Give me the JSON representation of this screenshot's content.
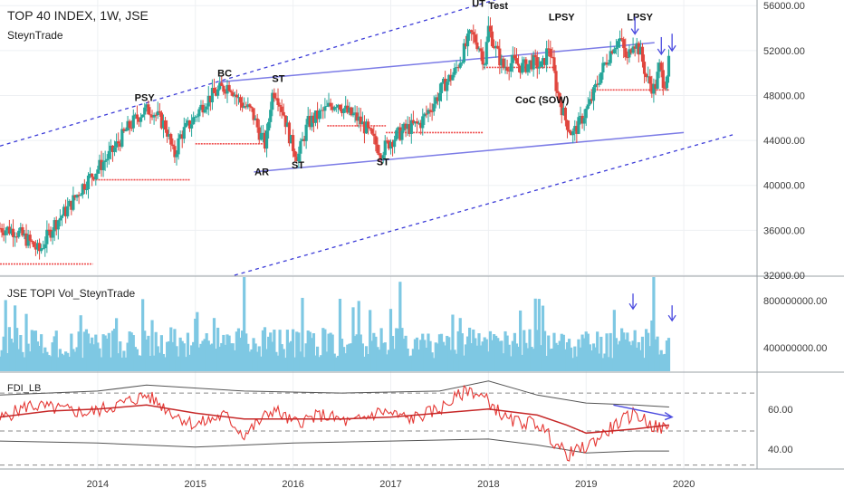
{
  "header": {
    "title": "TOP 40 INDEX, 1W, JSE",
    "author": "SteynTrade"
  },
  "volume_pane": {
    "title": "JSE TOPI Vol_SteynTrade"
  },
  "fdi_pane": {
    "title": "FDI_LB"
  },
  "chart_data": [
    {
      "type": "candlestick",
      "title": "TOP 40 INDEX, 1W, JSE",
      "subtitle": "SteynTrade",
      "timeframe": "1W",
      "exchange": "JSE",
      "x_ticks": [
        "2014",
        "2015",
        "2016",
        "2017",
        "2018",
        "2019",
        "2020"
      ],
      "x_tick_dates": [
        2014.0,
        2015.0,
        2016.0,
        2017.0,
        2018.0,
        2019.0,
        2020.0
      ],
      "x_range": [
        2013.0,
        2020.75
      ],
      "y_ticks": [
        "32000.00",
        "36000.00",
        "40000.00",
        "44000.00",
        "48000.00",
        "52000.00",
        "56000.00"
      ],
      "ylim": [
        32000,
        56500
      ],
      "close_series": [
        [
          2013.0,
          36200
        ],
        [
          2013.15,
          36000
        ],
        [
          2013.3,
          35000
        ],
        [
          2013.4,
          34100
        ],
        [
          2013.55,
          36500
        ],
        [
          2013.7,
          38000
        ],
        [
          2013.85,
          40000
        ],
        [
          2014.0,
          41500
        ],
        [
          2014.15,
          43000
        ],
        [
          2014.3,
          45000
        ],
        [
          2014.45,
          46500
        ],
        [
          2014.55,
          46800
        ],
        [
          2014.62,
          46000
        ],
        [
          2014.7,
          45200
        ],
        [
          2014.78,
          42500
        ],
        [
          2014.85,
          44500
        ],
        [
          2014.95,
          45500
        ],
        [
          2015.1,
          47500
        ],
        [
          2015.25,
          48500
        ],
        [
          2015.35,
          49000
        ],
        [
          2015.45,
          47500
        ],
        [
          2015.58,
          46500
        ],
        [
          2015.65,
          44800
        ],
        [
          2015.72,
          43500
        ],
        [
          2015.78,
          48000
        ],
        [
          2015.82,
          48500
        ],
        [
          2015.9,
          46500
        ],
        [
          2015.98,
          43800
        ],
        [
          2016.05,
          42500
        ],
        [
          2016.15,
          45500
        ],
        [
          2016.3,
          46500
        ],
        [
          2016.45,
          47500
        ],
        [
          2016.55,
          46500
        ],
        [
          2016.65,
          46000
        ],
        [
          2016.75,
          45000
        ],
        [
          2016.82,
          44000
        ],
        [
          2016.9,
          43000
        ],
        [
          2017.0,
          44000
        ],
        [
          2017.15,
          45000
        ],
        [
          2017.3,
          45500
        ],
        [
          2017.45,
          47500
        ],
        [
          2017.55,
          49000
        ],
        [
          2017.65,
          50000
        ],
        [
          2017.75,
          52000
        ],
        [
          2017.82,
          53500
        ],
        [
          2017.9,
          52500
        ],
        [
          2017.96,
          51000
        ],
        [
          2018.0,
          54000
        ],
        [
          2018.08,
          52000
        ],
        [
          2018.15,
          50500
        ],
        [
          2018.25,
          51000
        ],
        [
          2018.35,
          50500
        ],
        [
          2018.45,
          51000
        ],
        [
          2018.55,
          50500
        ],
        [
          2018.62,
          52500
        ],
        [
          2018.7,
          48500
        ],
        [
          2018.78,
          46000
        ],
        [
          2018.86,
          44500
        ],
        [
          2018.95,
          45800
        ],
        [
          2019.05,
          47500
        ],
        [
          2019.15,
          50000
        ],
        [
          2019.28,
          52500
        ],
        [
          2019.35,
          53000
        ],
        [
          2019.42,
          51000
        ],
        [
          2019.48,
          53000
        ],
        [
          2019.55,
          52000
        ],
        [
          2019.62,
          49500
        ],
        [
          2019.7,
          48500
        ],
        [
          2019.75,
          50500
        ],
        [
          2019.8,
          49000
        ],
        [
          2019.85,
          51000
        ]
      ],
      "annotations": [
        {
          "text": "PSY",
          "x": 2014.48,
          "y": 47500
        },
        {
          "text": "BC",
          "x": 2015.3,
          "y": 49700
        },
        {
          "text": "ST",
          "x": 2015.85,
          "y": 49200
        },
        {
          "text": "AR",
          "x": 2015.68,
          "y": 40900
        },
        {
          "text": "ST",
          "x": 2016.05,
          "y": 41500
        },
        {
          "text": "ST",
          "x": 2016.92,
          "y": 41800
        },
        {
          "text": "UT",
          "x": 2017.9,
          "y": 55900
        },
        {
          "text": "Test",
          "x": 2018.1,
          "y": 55700
        },
        {
          "text": "LPSY",
          "x": 2018.75,
          "y": 54700
        },
        {
          "text": "CoC (SOW)",
          "x": 2018.55,
          "y": 47300
        },
        {
          "text": "LPSY",
          "x": 2019.55,
          "y": 54700
        }
      ],
      "channel_dashed_upper": [
        [
          2013.0,
          43500
        ],
        [
          2018.45,
          57500
        ]
      ],
      "channel_dashed_lower": [
        [
          2015.4,
          32000
        ],
        [
          2020.5,
          44500
        ]
      ],
      "trend_lines": [
        [
          [
            2015.25,
            49200
          ],
          [
            2019.7,
            52700
          ]
        ],
        [
          [
            2015.6,
            41200
          ],
          [
            2020.0,
            44700
          ]
        ]
      ],
      "resistance_levels": [
        [
          [
            2013.0,
            2013.95,
            33000
          ]
        ],
        [
          [
            2013.95,
            2014.95,
            40500
          ]
        ],
        [
          [
            2015.0,
            2015.7,
            43700
          ]
        ],
        [
          [
            2016.35,
            2016.95,
            45300
          ]
        ],
        [
          [
            2016.95,
            2017.95,
            44700
          ]
        ],
        [
          [
            2017.95,
            2018.7,
            50500
          ]
        ],
        [
          [
            2019.05,
            2019.85,
            48500
          ]
        ]
      ],
      "arrows": [
        {
          "x": 2019.5,
          "y": 55000
        },
        {
          "x": 2019.77,
          "y": 53200
        },
        {
          "x": 2019.88,
          "y": 53500
        }
      ],
      "colors": {
        "up": "#26a69a",
        "down": "#e0463e",
        "channel": "#3c3cd8",
        "support_resistance": "#ef4f4f"
      }
    },
    {
      "type": "bar",
      "title": "JSE TOPI Vol_SteynTrade",
      "y_ticks": [
        "400000000.00",
        "800000000.00"
      ],
      "ylim": [
        200000000,
        1000000000
      ],
      "x_range": [
        2013.0,
        2020.75
      ],
      "base_value": 480000000,
      "peaks": [
        {
          "x": 2015.5,
          "value": 1000000000
        },
        {
          "x": 2017.1,
          "value": 960000000
        },
        {
          "x": 2019.7,
          "value": 1000000000
        },
        {
          "x": 2019.88,
          "value": 650000000
        }
      ],
      "arrows": [
        {
          "x": 2019.48,
          "value": 860000000
        },
        {
          "x": 2019.88,
          "value": 760000000
        }
      ],
      "color": "#7ec8e3"
    },
    {
      "type": "line",
      "title": "FDI_LB",
      "y_ticks": [
        "40.00",
        "60.00"
      ],
      "ylim": [
        30,
        78
      ],
      "x_range": [
        2013.0,
        2020.75
      ],
      "reference_levels": [
        32,
        49,
        68
      ],
      "series": [
        {
          "color": "#e53935",
          "values": [
            [
              2013.0,
              55
            ],
            [
              2013.3,
              62
            ],
            [
              2013.6,
              60
            ],
            [
              2013.9,
              58
            ],
            [
              2014.2,
              62
            ],
            [
              2014.5,
              67
            ],
            [
              2014.8,
              57
            ],
            [
              2015.0,
              52
            ],
            [
              2015.3,
              57
            ],
            [
              2015.5,
              47
            ],
            [
              2015.8,
              60
            ],
            [
              2016.0,
              53
            ],
            [
              2016.3,
              57
            ],
            [
              2016.6,
              53
            ],
            [
              2016.9,
              59
            ],
            [
              2017.2,
              55
            ],
            [
              2017.5,
              60
            ],
            [
              2017.8,
              70
            ],
            [
              2018.0,
              64
            ],
            [
              2018.2,
              54
            ],
            [
              2018.5,
              53
            ],
            [
              2018.8,
              37
            ],
            [
              2019.0,
              41
            ],
            [
              2019.3,
              52
            ],
            [
              2019.5,
              58
            ],
            [
              2019.7,
              51
            ],
            [
              2019.85,
              50
            ]
          ]
        },
        {
          "color": "#c62828",
          "values": [
            [
              2013.0,
              56
            ],
            [
              2013.5,
              59
            ],
            [
              2014.0,
              60
            ],
            [
              2014.5,
              62
            ],
            [
              2015.0,
              58
            ],
            [
              2015.5,
              55
            ],
            [
              2016.0,
              55
            ],
            [
              2016.5,
              55
            ],
            [
              2017.0,
              56
            ],
            [
              2017.5,
              58
            ],
            [
              2018.0,
              60
            ],
            [
              2018.5,
              57
            ],
            [
              2018.8,
              52
            ],
            [
              2019.0,
              48
            ],
            [
              2019.5,
              50
            ],
            [
              2019.85,
              52
            ]
          ]
        }
      ],
      "bands_upper": [
        [
          2013.0,
          67
        ],
        [
          2014.0,
          69
        ],
        [
          2014.5,
          72
        ],
        [
          2015.5,
          69
        ],
        [
          2016.5,
          68
        ],
        [
          2017.5,
          69
        ],
        [
          2018.0,
          74
        ],
        [
          2018.5,
          67
        ],
        [
          2019.0,
          63
        ],
        [
          2019.5,
          62
        ],
        [
          2019.85,
          61
        ]
      ],
      "bands_lower": [
        [
          2013.0,
          44
        ],
        [
          2014.0,
          43
        ],
        [
          2015.0,
          41
        ],
        [
          2016.0,
          43
        ],
        [
          2017.0,
          44
        ],
        [
          2018.0,
          45
        ],
        [
          2018.5,
          42
        ],
        [
          2019.0,
          38
        ],
        [
          2019.5,
          39
        ],
        [
          2019.85,
          39
        ]
      ],
      "trend_line": [
        [
          2019.28,
          62
        ],
        [
          2019.88,
          56
        ]
      ]
    }
  ]
}
